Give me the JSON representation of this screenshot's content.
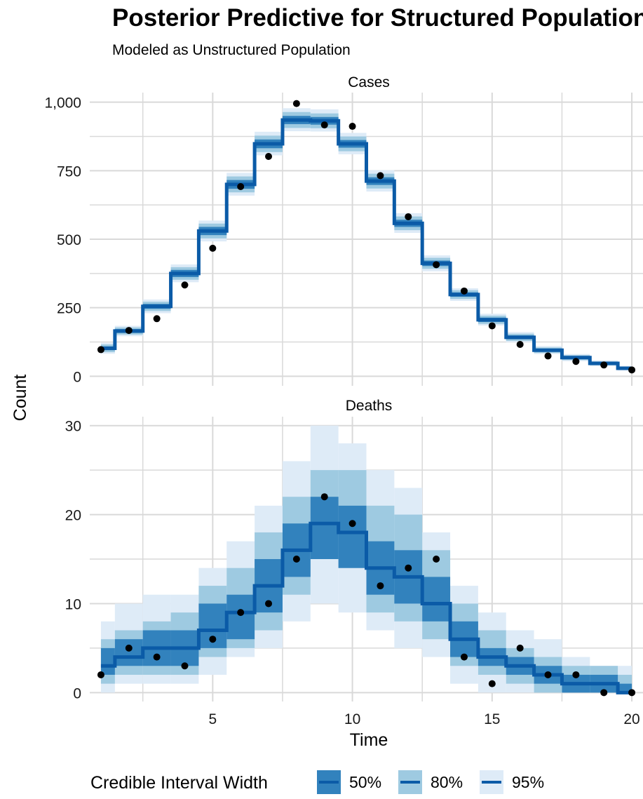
{
  "title": "Posterior Predictive for Structured Population",
  "subtitle": "Modeled as Unstructured Population",
  "xlabel": "Time",
  "ylabel": "Count",
  "legend": {
    "title": "Credible Interval Width",
    "items": [
      {
        "label": "50%",
        "color": "#3282bd"
      },
      {
        "label": "80%",
        "color": "#9ecae1"
      },
      {
        "label": "95%",
        "color": "#deebf7"
      }
    ]
  },
  "colors": {
    "median_line": "#0b5ba7",
    "points": "#000000",
    "grid": "#d9d9d9",
    "band_50": "#3282bd",
    "band_80": "#9ecae1",
    "band_95": "#deebf7"
  },
  "chart_data": [
    {
      "type": "area",
      "panel": "Cases",
      "xlabel": "Time",
      "ylabel": "Count",
      "x": [
        1,
        2,
        3,
        4,
        5,
        6,
        7,
        8,
        9,
        10,
        11,
        12,
        13,
        14,
        15,
        16,
        17,
        18,
        19,
        20
      ],
      "xlim": [
        0.6,
        20.4
      ],
      "ylim": [
        -35,
        1035
      ],
      "xticks": [
        5,
        10,
        15,
        20
      ],
      "xtick_labels": [
        "5",
        "10",
        "15",
        "20"
      ],
      "yticks": [
        0,
        250,
        500,
        750,
        1000
      ],
      "ytick_labels": [
        "0",
        "250",
        "500",
        "750",
        "1,000"
      ],
      "grid": true,
      "observed": [
        97,
        167,
        210,
        333,
        467,
        692,
        802,
        995,
        917,
        912,
        732,
        582,
        407,
        311,
        184,
        116,
        74,
        54,
        41,
        23
      ],
      "median": [
        102,
        165,
        255,
        375,
        530,
        700,
        848,
        935,
        932,
        848,
        712,
        558,
        412,
        298,
        206,
        142,
        95,
        68,
        47,
        29
      ],
      "ci_50": {
        "lower": [
          95,
          158,
          246,
          362,
          515,
          684,
          832,
          920,
          918,
          834,
          698,
          545,
          402,
          290,
          198,
          135,
          90,
          63,
          43,
          26
        ],
        "upper": [
          109,
          172,
          264,
          388,
          545,
          716,
          864,
          950,
          946,
          862,
          726,
          571,
          422,
          306,
          214,
          149,
          100,
          73,
          51,
          32
        ]
      },
      "ci_80": {
        "lower": [
          88,
          152,
          238,
          352,
          503,
          671,
          818,
          906,
          905,
          821,
          685,
          533,
          392,
          282,
          191,
          129,
          85,
          59,
          40,
          23
        ],
        "upper": [
          116,
          178,
          272,
          398,
          557,
          729,
          878,
          964,
          959,
          875,
          739,
          583,
          432,
          314,
          221,
          155,
          105,
          77,
          54,
          35
        ]
      },
      "ci_95": {
        "lower": [
          82,
          146,
          230,
          343,
          492,
          659,
          806,
          894,
          893,
          810,
          674,
          523,
          383,
          275,
          185,
          124,
          81,
          55,
          37,
          21
        ],
        "upper": [
          122,
          184,
          280,
          408,
          568,
          742,
          892,
          978,
          974,
          888,
          752,
          595,
          441,
          321,
          228,
          161,
          110,
          81,
          58,
          38
        ]
      }
    },
    {
      "type": "area",
      "panel": "Deaths",
      "xlabel": "Time",
      "ylabel": "Count",
      "x": [
        1,
        2,
        3,
        4,
        5,
        6,
        7,
        8,
        9,
        10,
        11,
        12,
        13,
        14,
        15,
        16,
        17,
        18,
        19,
        20
      ],
      "xlim": [
        0.6,
        20.4
      ],
      "ylim": [
        -1,
        31
      ],
      "xticks": [
        5,
        10,
        15,
        20
      ],
      "xtick_labels": [
        "5",
        "10",
        "15",
        "20"
      ],
      "yticks": [
        0,
        10,
        20,
        30
      ],
      "ytick_labels": [
        "0",
        "10",
        "20",
        "30"
      ],
      "grid": true,
      "observed": [
        2,
        5,
        4,
        3,
        6,
        9,
        10,
        15,
        22,
        19,
        12,
        14,
        15,
        4,
        1,
        5,
        2,
        2,
        0,
        0
      ],
      "median": [
        3,
        4,
        5,
        5,
        7,
        9,
        12,
        16,
        19,
        18,
        14,
        13,
        10,
        6,
        4,
        3,
        2,
        1,
        1,
        0
      ],
      "ci_50": {
        "lower": [
          2,
          3,
          3,
          3,
          5,
          6,
          9,
          13,
          15,
          14,
          11,
          10,
          8,
          4,
          3,
          2,
          1,
          0,
          0,
          0
        ],
        "upper": [
          5,
          6,
          7,
          7,
          10,
          11,
          15,
          19,
          22,
          21,
          17,
          16,
          13,
          8,
          5,
          4,
          3,
          2,
          2,
          1
        ]
      },
      "ci_80": {
        "lower": [
          1,
          2,
          2,
          2,
          4,
          5,
          7,
          11,
          15,
          14,
          9,
          8,
          6,
          3,
          2,
          1,
          0,
          0,
          0,
          0
        ],
        "upper": [
          6,
          7,
          8,
          9,
          12,
          14,
          18,
          22,
          25,
          25,
          21,
          20,
          16,
          10,
          7,
          5,
          4,
          3,
          3,
          2
        ]
      },
      "ci_95": {
        "lower": [
          0,
          1,
          1,
          1,
          2,
          4,
          5,
          8,
          10,
          9,
          7,
          5,
          4,
          1,
          0,
          0,
          0,
          0,
          0,
          0
        ],
        "upper": [
          8,
          10,
          11,
          11,
          14,
          17,
          21,
          26,
          30,
          28,
          25,
          23,
          18,
          12,
          9,
          7,
          6,
          4,
          3,
          3
        ]
      }
    }
  ]
}
